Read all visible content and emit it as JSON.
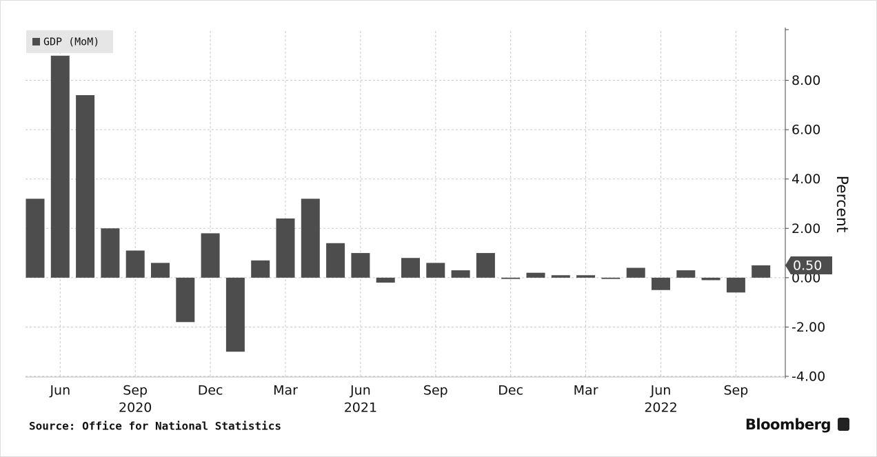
{
  "chart_data": {
    "type": "bar",
    "categories": [
      null,
      "Jun",
      null,
      null,
      "Sep",
      null,
      null,
      "Dec",
      null,
      null,
      "Mar",
      null,
      null,
      "Jun",
      null,
      null,
      "Sep",
      null,
      null,
      "Dec",
      null,
      null,
      "Mar",
      null,
      null,
      "Jun",
      null,
      null,
      "Sep",
      null
    ],
    "year_labels": [
      null,
      null,
      null,
      null,
      "2020",
      null,
      null,
      null,
      null,
      null,
      null,
      null,
      null,
      "2021",
      null,
      null,
      null,
      null,
      null,
      null,
      null,
      null,
      null,
      null,
      null,
      "2022",
      null,
      null,
      null,
      null
    ],
    "series": [
      {
        "name": "GDP (MoM)",
        "color": "#4d4d4d",
        "values": [
          3.2,
          9.0,
          7.4,
          2.0,
          1.1,
          0.6,
          -1.8,
          1.8,
          -3.0,
          0.7,
          2.4,
          3.2,
          1.4,
          1.0,
          -0.2,
          0.8,
          0.6,
          0.3,
          1.0,
          -0.05,
          0.2,
          0.1,
          0.1,
          -0.05,
          0.4,
          -0.5,
          0.3,
          -0.1,
          -0.6,
          0.5
        ],
        "value_labels": [
          null,
          null,
          null,
          null,
          null,
          null,
          null,
          null,
          null,
          null,
          null,
          null,
          null,
          null,
          null,
          null,
          null,
          null,
          null,
          null,
          null,
          null,
          null,
          null,
          null,
          null,
          null,
          null,
          null,
          "0.50"
        ]
      }
    ],
    "ylim": [
      -4,
      10
    ],
    "yticks": [
      {
        "value": -4,
        "label": "-4.00"
      },
      {
        "value": -2,
        "label": "-2.00"
      },
      {
        "value": 0,
        "label": "0.00"
      },
      {
        "value": 2,
        "label": "2.00"
      },
      {
        "value": 4,
        "label": "4.00"
      },
      {
        "value": 6,
        "label": "6.00"
      },
      {
        "value": 8,
        "label": "8.00"
      }
    ],
    "ylabel": "Percent",
    "grid": true,
    "legend": "top-left",
    "source": "Source: Office for National Statistics",
    "brand": "Bloomberg"
  }
}
